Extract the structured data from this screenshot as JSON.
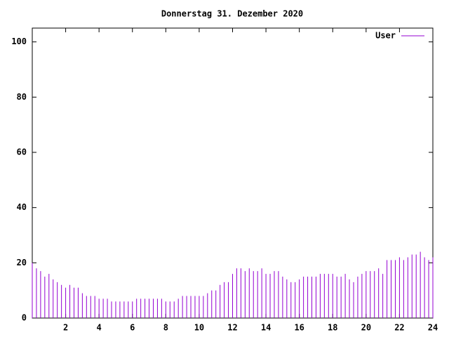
{
  "chart_data": {
    "type": "impulse",
    "title": "Donnerstag 31. Dezember 2020",
    "x": [
      0,
      0.25,
      0.5,
      0.75,
      1,
      1.25,
      1.5,
      1.75,
      2,
      2.25,
      2.5,
      2.75,
      3,
      3.25,
      3.5,
      3.75,
      4,
      4.25,
      4.5,
      4.75,
      5,
      5.25,
      5.5,
      5.75,
      6,
      6.25,
      6.5,
      6.75,
      7,
      7.25,
      7.5,
      7.75,
      8,
      8.25,
      8.5,
      8.75,
      9,
      9.25,
      9.5,
      9.75,
      10,
      10.25,
      10.5,
      10.75,
      11,
      11.25,
      11.5,
      11.75,
      12,
      12.25,
      12.5,
      12.75,
      13,
      13.25,
      13.5,
      13.75,
      14,
      14.25,
      14.5,
      14.75,
      15,
      15.25,
      15.5,
      15.75,
      16,
      16.25,
      16.5,
      16.75,
      17,
      17.25,
      17.5,
      17.75,
      18,
      18.25,
      18.5,
      18.75,
      19,
      19.25,
      19.5,
      19.75,
      20,
      20.25,
      20.5,
      20.75,
      21,
      21.25,
      21.5,
      21.75,
      22,
      22.25,
      22.5,
      22.75,
      23,
      23.25,
      23.5,
      23.75,
      24
    ],
    "series": [
      {
        "name": "User",
        "color": "#9400d3",
        "values": [
          20,
          18,
          17,
          15,
          16,
          14,
          13,
          12,
          11,
          12,
          11,
          11,
          9,
          8,
          8,
          8,
          7,
          7,
          7,
          6,
          6,
          6,
          6,
          6,
          6,
          7,
          7,
          7,
          7,
          7,
          7,
          7,
          6,
          6,
          6,
          7,
          8,
          8,
          8,
          8,
          8,
          8,
          9,
          10,
          10,
          12,
          13,
          13,
          16,
          18,
          18,
          17,
          18,
          17,
          17,
          18,
          16,
          16,
          17,
          17,
          15,
          14,
          13,
          13,
          14,
          15,
          15,
          15,
          15,
          16,
          16,
          16,
          16,
          15,
          15,
          16,
          14,
          13,
          15,
          16,
          17,
          17,
          17,
          18,
          16,
          21,
          21,
          21,
          22,
          21,
          22,
          23,
          23,
          24,
          22,
          21,
          22
        ]
      }
    ],
    "xlim": [
      0,
      24
    ],
    "xticks": [
      2,
      4,
      6,
      8,
      10,
      12,
      14,
      16,
      18,
      20,
      22,
      24
    ],
    "ylim": [
      0,
      105
    ],
    "yticks": [
      0,
      20,
      40,
      60,
      80,
      100
    ],
    "legend": "top-right"
  }
}
